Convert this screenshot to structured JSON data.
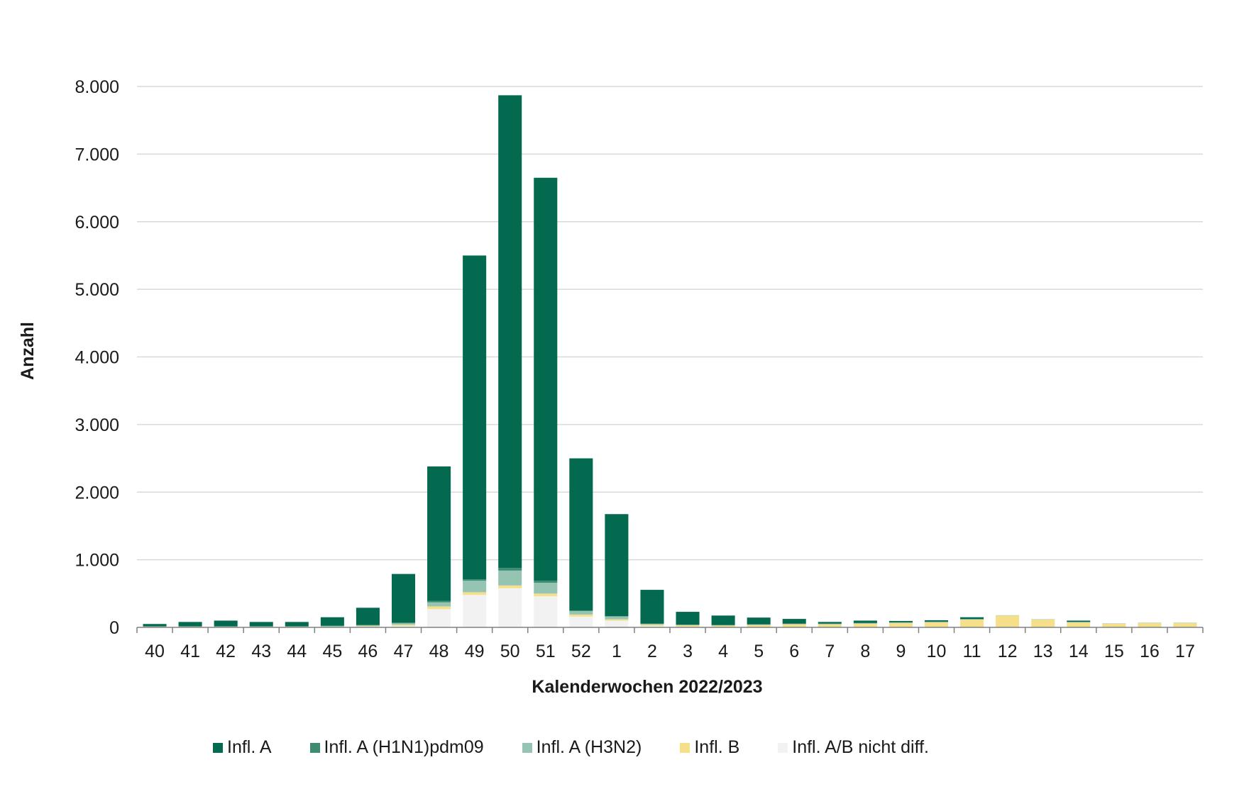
{
  "chart_data": {
    "type": "bar",
    "stacked": true,
    "xlabel": "Kalenderwochen 2022/2023",
    "ylabel": "Anzahl",
    "ylim": [
      0,
      8000
    ],
    "yticks": [
      0,
      1000,
      2000,
      3000,
      4000,
      5000,
      6000,
      7000,
      8000
    ],
    "ytick_labels": [
      "0",
      "1.000",
      "2.000",
      "3.000",
      "4.000",
      "5.000",
      "6.000",
      "7.000",
      "8.000"
    ],
    "grid": true,
    "legend_position": "bottom",
    "categories": [
      "40",
      "41",
      "42",
      "43",
      "44",
      "45",
      "46",
      "47",
      "48",
      "49",
      "50",
      "51",
      "52",
      "1",
      "2",
      "3",
      "4",
      "5",
      "6",
      "7",
      "8",
      "9",
      "10",
      "11",
      "12",
      "13",
      "14",
      "15",
      "16",
      "17"
    ],
    "series": [
      {
        "name": "Infl. A/B nicht diff.",
        "color": "#f2f2f2",
        "values": [
          5,
          5,
          5,
          5,
          5,
          5,
          10,
          20,
          270,
          480,
          580,
          460,
          160,
          100,
          20,
          10,
          5,
          5,
          5,
          5,
          5,
          5,
          5,
          5,
          5,
          5,
          5,
          5,
          5,
          5
        ]
      },
      {
        "name": "Infl. B",
        "color": "#f5df8a",
        "values": [
          5,
          5,
          5,
          5,
          5,
          5,
          10,
          20,
          40,
          40,
          40,
          40,
          30,
          20,
          20,
          20,
          20,
          30,
          40,
          40,
          50,
          60,
          70,
          110,
          170,
          110,
          70,
          50,
          60,
          60
        ]
      },
      {
        "name": "Infl. A (H3N2)",
        "color": "#96c4b3",
        "values": [
          5,
          5,
          5,
          5,
          5,
          10,
          10,
          20,
          60,
          170,
          220,
          160,
          50,
          40,
          10,
          5,
          5,
          5,
          5,
          5,
          5,
          5,
          5,
          5,
          5,
          5,
          5,
          5,
          5,
          5
        ]
      },
      {
        "name": "Infl. A (H1N1)pdm09",
        "color": "#3d8c72",
        "values": [
          0,
          0,
          0,
          0,
          0,
          5,
          5,
          10,
          20,
          20,
          40,
          30,
          10,
          5,
          5,
          5,
          5,
          5,
          5,
          5,
          5,
          5,
          5,
          5,
          0,
          0,
          0,
          0,
          0,
          0
        ]
      },
      {
        "name": "Infl. A",
        "color": "#046a4f",
        "values": [
          35,
          65,
          85,
          65,
          65,
          125,
          255,
          720,
          1990,
          4790,
          6990,
          5960,
          2250,
          1510,
          500,
          190,
          140,
          100,
          70,
          25,
          35,
          20,
          20,
          25,
          0,
          0,
          20,
          0,
          0,
          0
        ]
      }
    ],
    "legend_order": [
      "Infl. A",
      "Infl. A (H1N1)pdm09",
      "Infl. A (H3N2)",
      "Infl. B",
      "Infl. A/B nicht diff."
    ],
    "axis_color": "#808080",
    "grid_color": "#d9d9d9"
  }
}
